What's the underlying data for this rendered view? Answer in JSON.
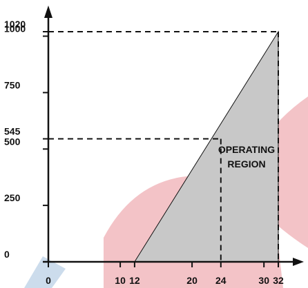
{
  "chart_data": {
    "type": "area",
    "title": "",
    "xlabel": "",
    "ylabel": "",
    "xlim": [
      0,
      33
    ],
    "ylim": [
      0,
      1090
    ],
    "x_ticks": [
      0,
      10,
      12,
      20,
      24,
      30,
      32
    ],
    "x_tick_labels": [
      "0",
      "10",
      "12",
      "20",
      "24",
      "30",
      "32"
    ],
    "y_ticks": [
      0,
      250,
      500,
      545,
      750,
      1000,
      1020
    ],
    "y_tick_labels": [
      "0",
      "250",
      "500",
      "545",
      "750",
      "1000",
      "1020"
    ],
    "region": {
      "label_lines": [
        "OPERATING",
        "REGION"
      ],
      "polygon": [
        [
          12,
          0
        ],
        [
          32,
          0
        ],
        [
          32,
          1020
        ]
      ],
      "fill": "#c8c8c8"
    },
    "reference_lines": [
      {
        "from": [
          0,
          1020
        ],
        "to": [
          32,
          1020
        ]
      },
      {
        "from": [
          0,
          545
        ],
        "to": [
          24,
          545
        ]
      },
      {
        "from": [
          24,
          545
        ],
        "to": [
          24,
          0
        ]
      },
      {
        "from": [
          32,
          1020
        ],
        "to": [
          32,
          0
        ]
      }
    ],
    "grid": false,
    "legend": "none",
    "colors": {
      "axis": "#111111",
      "region": "#c8c8c8",
      "watermark_red": "#f2c0c4",
      "watermark_blue": "#c9d9ea"
    }
  }
}
